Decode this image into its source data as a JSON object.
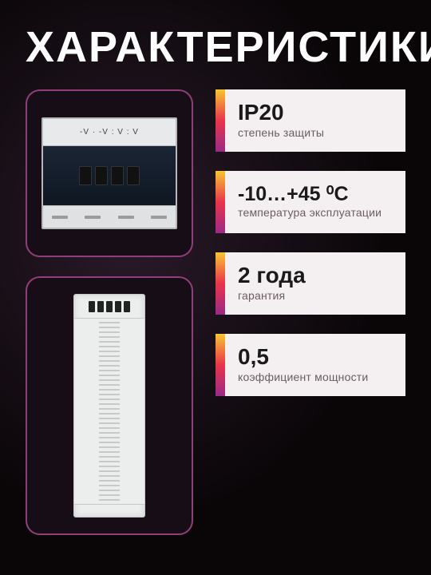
{
  "title": "ХАРАКТЕРИСТИКИ",
  "accent_gradient": [
    "#f7c531",
    "#e8354a",
    "#9a2a86"
  ],
  "card_border": "#923e7a",
  "card_bg": "#160d17",
  "page_bg": "#0a0608",
  "psu1_label": "-V · -V : V : V",
  "specs": [
    {
      "value": "IP20",
      "label": "степень защиты"
    },
    {
      "value": "-10…+45 ⁰С",
      "label": "температура эксплуатации"
    },
    {
      "value": "2 года",
      "label": "гарантия"
    },
    {
      "value": "0,5",
      "label": "коэффициент мощности"
    }
  ]
}
